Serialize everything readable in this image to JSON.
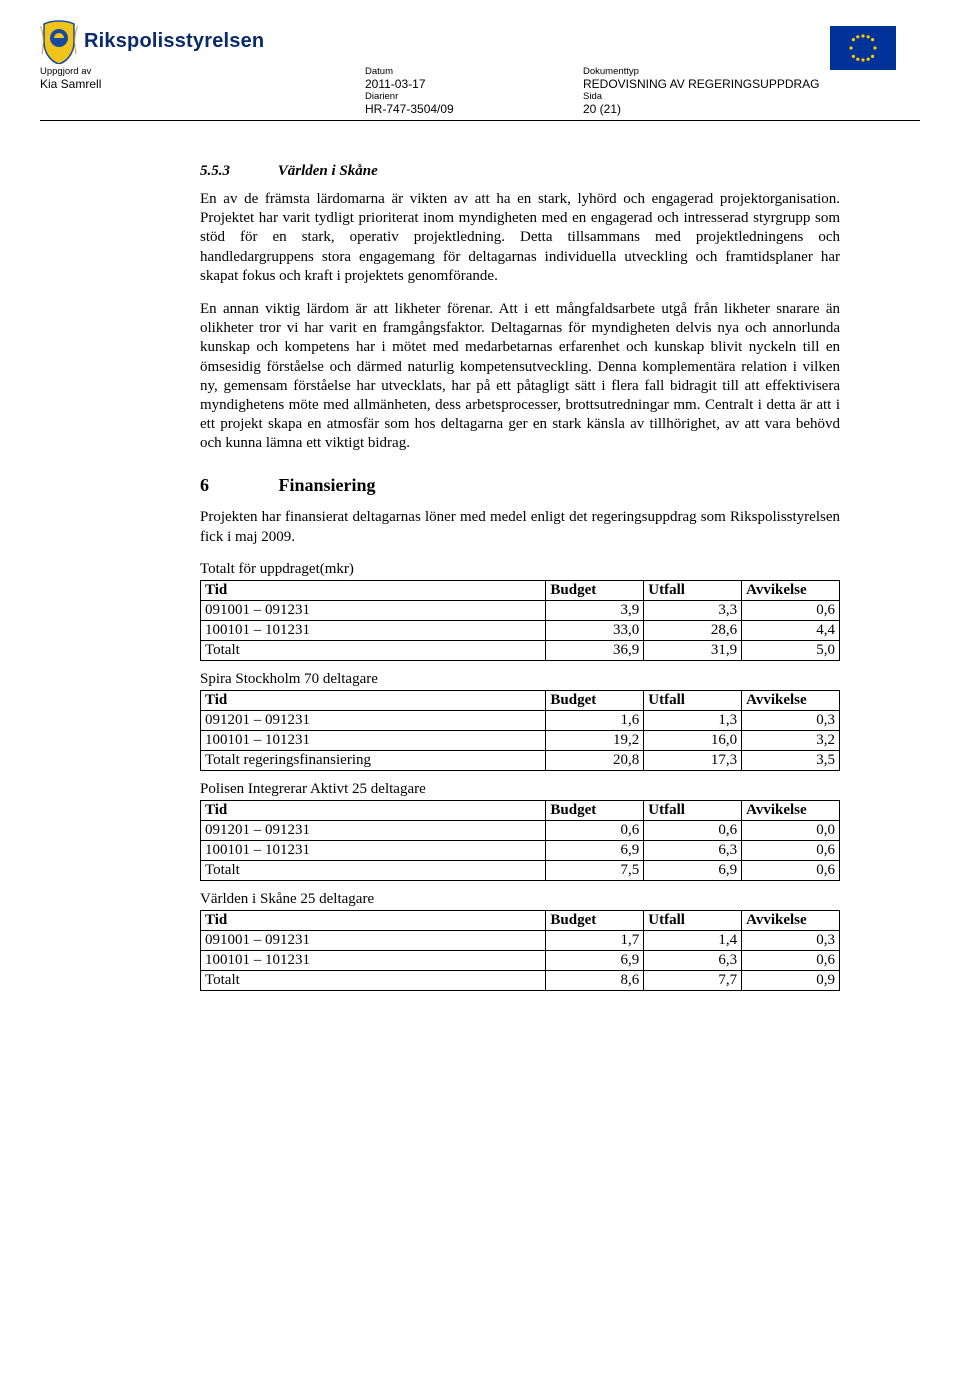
{
  "header": {
    "org_name": "Rikspolisstyrelsen",
    "meta": {
      "uppgjord_label": "Uppgjord av",
      "uppgjord_val": "Kia Samrell",
      "datum_label": "Datum",
      "datum_val": "2011-03-17",
      "dokumenttyp_label": "Dokumenttyp",
      "dokumenttyp_val": "REDOVISNING AV REGERINGSUPPDRAG",
      "diarienr_label": "Diarienr",
      "diarienr_val": "HR-747-3504/09",
      "sida_label": "Sida",
      "sida_val": "20 (21)"
    },
    "logo": {
      "shield_main": "#f0c419",
      "shield_blue": "#1a4aa0",
      "leaf": "#c0a030"
    },
    "eu_flag": {
      "bg": "#003399",
      "star": "#ffcc00"
    }
  },
  "section553": {
    "num": "5.5.3",
    "title": "Världen i Skåne",
    "p1": "En av de främsta lärdomarna är vikten av att ha en stark, lyhörd och engagerad projektorganisation. Projektet har varit tydligt prioriterat inom myndigheten med en engagerad och intresserad styrgrupp som stöd för en stark, operativ projektledning. Detta tillsammans med projektledningens och handledargruppens stora engagemang för deltagarnas individuella utveckling och framtidsplaner har skapat fokus och kraft i projektets genomförande.",
    "p2": "En annan viktig lärdom är att likheter förenar. Att i ett mångfaldsarbete utgå från likheter snarare än olikheter tror vi har varit en framgångsfaktor. Deltagarnas för myndigheten delvis nya och annorlunda kunskap och kompetens har i mötet med medarbetarnas erfarenhet och kunskap blivit nyckeln till en ömsesidig förståelse och därmed naturlig kompetensutveckling. Denna komplementära relation i vilken ny, gemensam förståelse har utvecklats, har på ett påtagligt sätt i flera fall bidragit till att effektivisera myndighetens möte med allmänheten, dess arbetsprocesser, brottsutredningar mm. Centralt i detta är att i ett projekt skapa en atmosfär som hos deltagarna ger en stark känsla av tillhörighet, av att vara behövd och kunna lämna ett viktigt bidrag."
  },
  "section6": {
    "num": "6",
    "title": "Finansiering",
    "intro": "Projekten har finansierat deltagarnas löner med medel enligt det regeringsuppdrag som Rikspolisstyrelsen fick i maj 2009."
  },
  "tables": {
    "columns": [
      "Tid",
      "Budget",
      "Utfall",
      "Avvikelse"
    ],
    "sets": [
      {
        "title": "Totalt för uppdraget(mkr)",
        "rows": [
          [
            "091001 – 091231",
            "3,9",
            "3,3",
            "0,6"
          ],
          [
            "100101 – 101231",
            "33,0",
            "28,6",
            "4,4"
          ],
          [
            "Totalt",
            "36,9",
            "31,9",
            "5,0"
          ]
        ]
      },
      {
        "title": "Spira Stockholm  70 deltagare",
        "rows": [
          [
            "091201 – 091231",
            "1,6",
            "1,3",
            "0,3"
          ],
          [
            "100101 – 101231",
            "19,2",
            "16,0",
            "3,2"
          ],
          [
            "Totalt regeringsfinansiering",
            "20,8",
            "17,3",
            "3,5"
          ]
        ]
      },
      {
        "title": "Polisen Integrerar Aktivt   25 deltagare",
        "rows": [
          [
            "091201 – 091231",
            "0,6",
            "0,6",
            "0,0"
          ],
          [
            "100101 – 101231",
            "6,9",
            "6,3",
            "0,6"
          ],
          [
            "Totalt",
            "7,5",
            "6,9",
            "0,6"
          ]
        ]
      },
      {
        "title": "Världen i Skåne 25 deltagare",
        "rows": [
          [
            "091001 – 091231",
            "1,7",
            "1,4",
            "0,3"
          ],
          [
            "100101 – 101231",
            "6,9",
            "6,3",
            "0,6"
          ],
          [
            "Totalt",
            "8,6",
            "7,7",
            "0,9"
          ]
        ]
      }
    ]
  }
}
